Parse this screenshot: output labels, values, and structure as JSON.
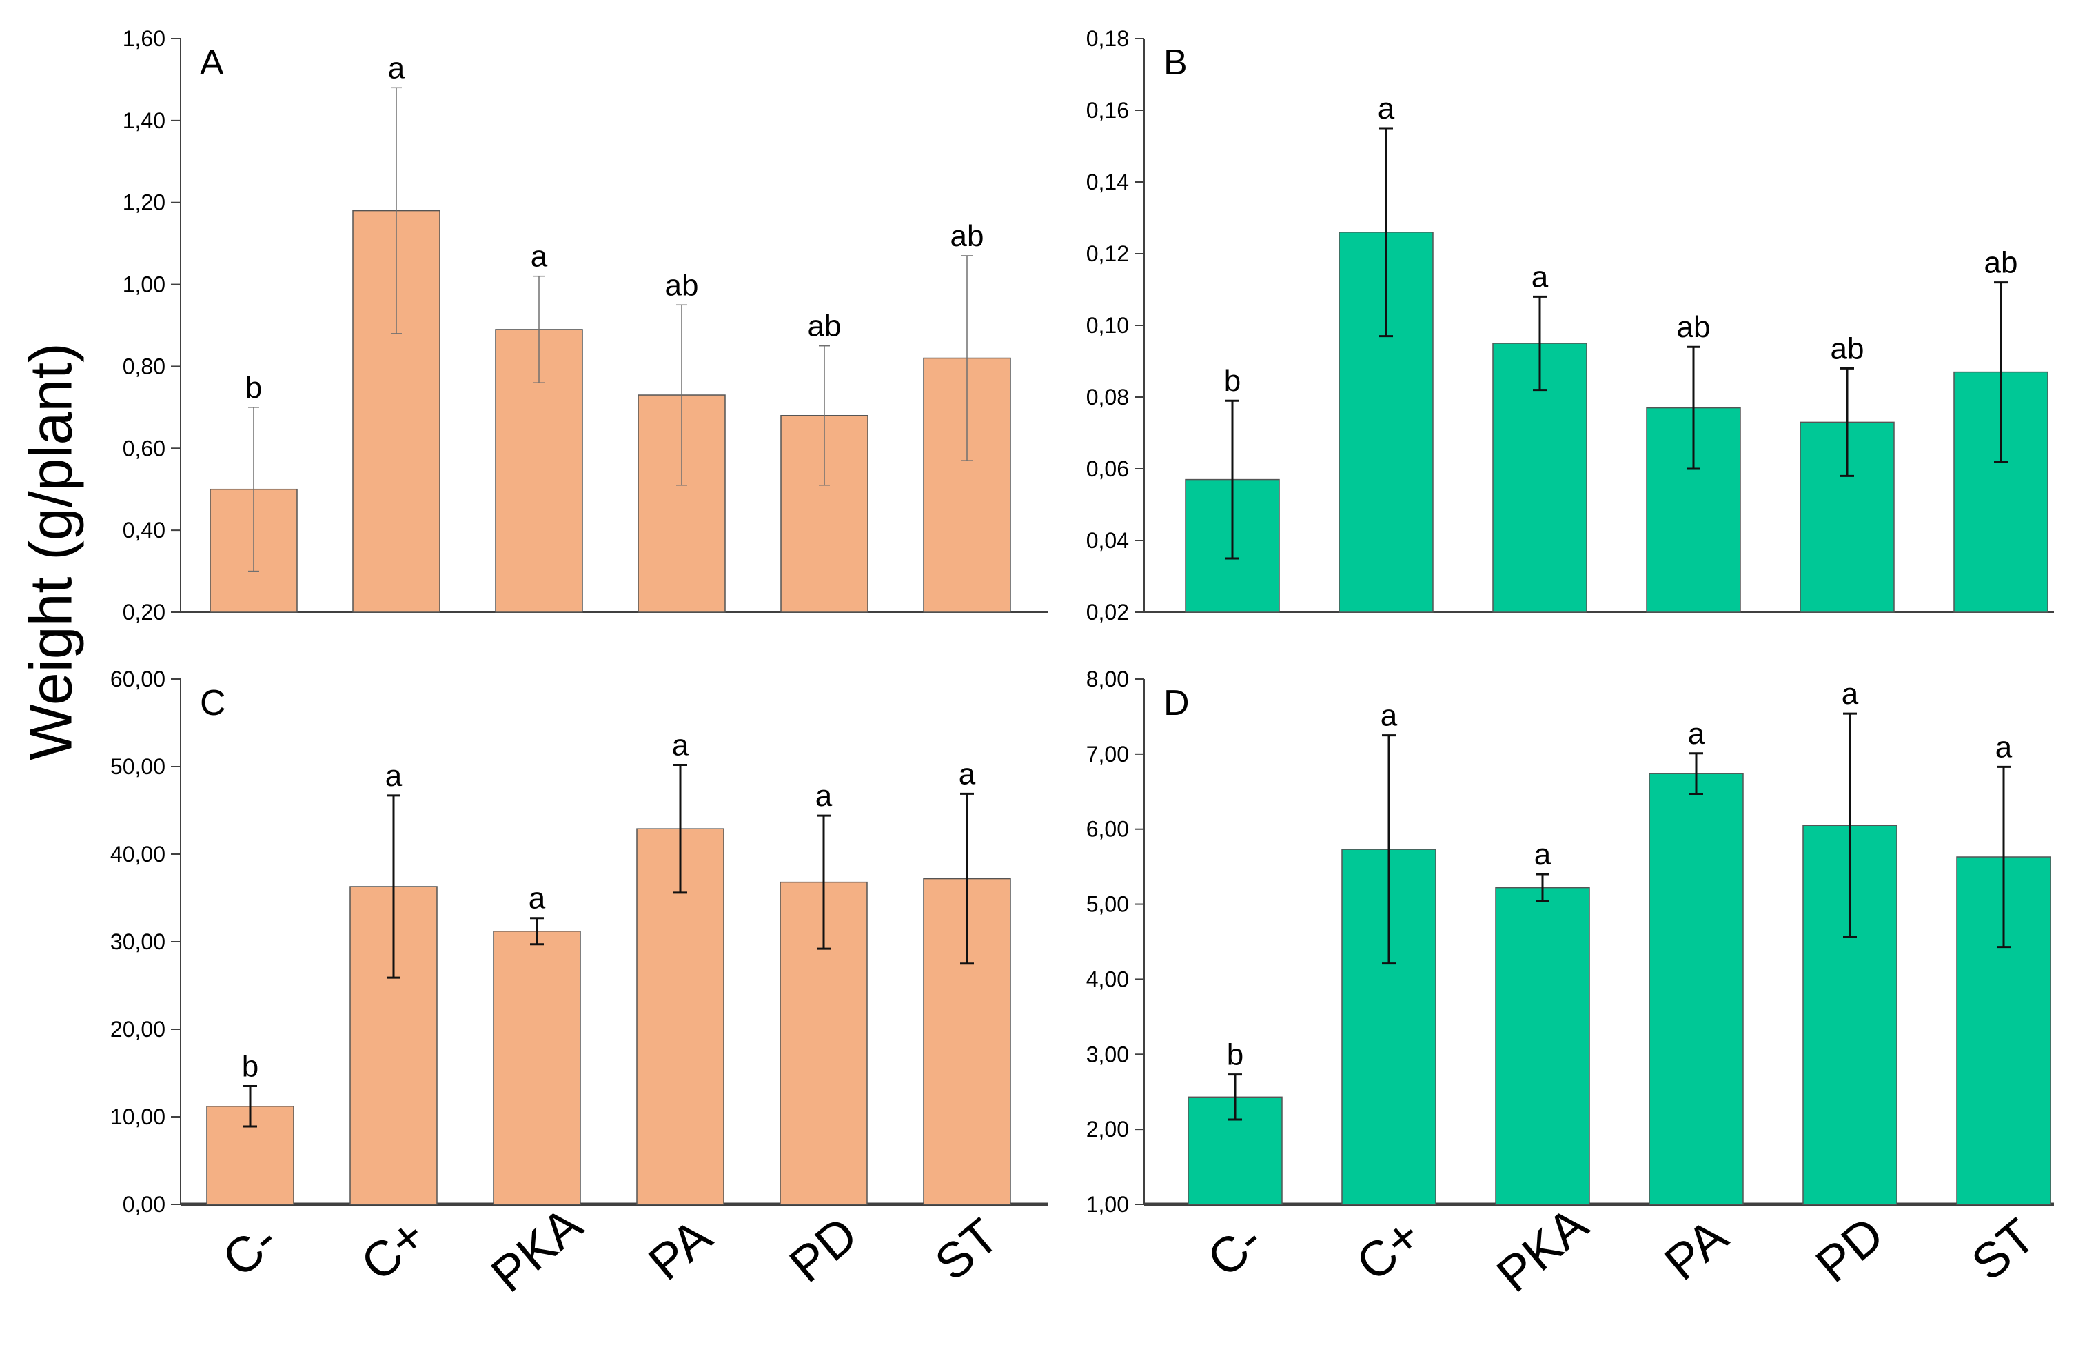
{
  "figure": {
    "ylabel": "Weight (g/plant)",
    "colors": {
      "orange": "#F4B084",
      "green": "#00C896",
      "axis": "#404040",
      "bar_edge": "#555555"
    }
  },
  "chart_data": [
    {
      "id": "A",
      "type": "bar",
      "panel_label": "A",
      "color": "#F4B084",
      "categories": [
        "C-",
        "C+",
        "PKA",
        "PA",
        "PD",
        "ST"
      ],
      "values": [
        0.5,
        1.18,
        0.89,
        0.73,
        0.68,
        0.82
      ],
      "errors": [
        0.2,
        0.3,
        0.13,
        0.22,
        0.17,
        0.25
      ],
      "letters": [
        "b",
        "a",
        "a",
        "ab",
        "ab",
        "ab"
      ],
      "ylim": [
        0.2,
        1.6
      ],
      "yticks": [
        "0,20",
        "0,40",
        "0,60",
        "0,80",
        "1,00",
        "1,20",
        "1,40",
        "1,60"
      ],
      "ylabel": "Weight (g/plant)"
    },
    {
      "id": "B",
      "type": "bar",
      "panel_label": "B",
      "color": "#00C896",
      "categories": [
        "C-",
        "C+",
        "PKA",
        "PA",
        "PD",
        "ST"
      ],
      "values": [
        0.057,
        0.126,
        0.095,
        0.077,
        0.073,
        0.087
      ],
      "errors": [
        0.022,
        0.029,
        0.013,
        0.017,
        0.015,
        0.025
      ],
      "letters": [
        "b",
        "a",
        "a",
        "ab",
        "ab",
        "ab"
      ],
      "ylim": [
        0.02,
        0.18
      ],
      "yticks": [
        "0,02",
        "0,04",
        "0,06",
        "0,08",
        "0,10",
        "0,12",
        "0,14",
        "0,16",
        "0,18"
      ],
      "ylabel": "Weight (g/plant)"
    },
    {
      "id": "C",
      "type": "bar",
      "panel_label": "C",
      "color": "#F4B084",
      "categories": [
        "C-",
        "C+",
        "PKA",
        "PA",
        "PD",
        "ST"
      ],
      "values": [
        11.2,
        36.3,
        31.2,
        42.9,
        36.8,
        37.2
      ],
      "errors": [
        2.3,
        10.4,
        1.5,
        7.3,
        7.6,
        9.7
      ],
      "letters": [
        "b",
        "a",
        "a",
        "a",
        "a",
        "a"
      ],
      "ylim": [
        0,
        60
      ],
      "yticks": [
        "0,00",
        "10,00",
        "20,00",
        "30,00",
        "40,00",
        "50,00",
        "60,00"
      ],
      "xtick_labels": [
        "C-",
        "C+",
        "PKA",
        "PA",
        "PD",
        "ST"
      ],
      "ylabel": "Weight (g/plant)"
    },
    {
      "id": "D",
      "type": "bar",
      "panel_label": "D",
      "color": "#00C896",
      "categories": [
        "C-",
        "C+",
        "PKA",
        "PA",
        "PD",
        "ST"
      ],
      "values": [
        2.43,
        5.73,
        5.22,
        6.74,
        6.05,
        5.63
      ],
      "errors": [
        0.3,
        1.52,
        0.18,
        0.27,
        1.49,
        1.2
      ],
      "letters": [
        "b",
        "a",
        "a",
        "a",
        "a",
        "a"
      ],
      "ylim": [
        1,
        8
      ],
      "yticks": [
        "1,00",
        "2,00",
        "3,00",
        "4,00",
        "5,00",
        "6,00",
        "7,00",
        "8,00"
      ],
      "xtick_labels": [
        "C-",
        "C+",
        "PKA",
        "PA",
        "PD",
        "ST"
      ],
      "ylabel": "Weight (g/plant)"
    }
  ]
}
